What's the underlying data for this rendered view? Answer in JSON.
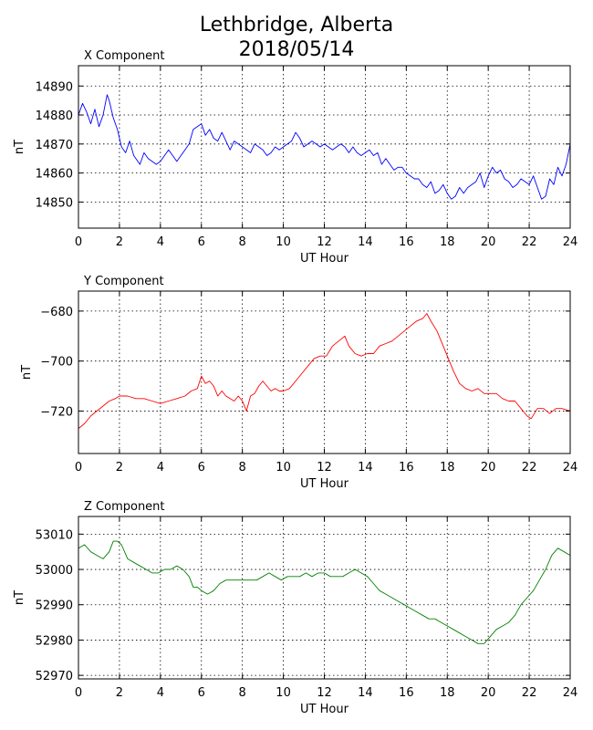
{
  "figure": {
    "title_line1": "Lethbridge, Alberta",
    "title_line2": "2018/05/14"
  },
  "chart_data": [
    {
      "type": "line",
      "title": "X Component",
      "xlabel": "UT Hour",
      "ylabel": "nT",
      "xlim": [
        0,
        24
      ],
      "ylim": [
        14841,
        14897
      ],
      "xticks": [
        0,
        2,
        4,
        6,
        8,
        10,
        12,
        14,
        16,
        18,
        20,
        22,
        24
      ],
      "yticks": [
        14850,
        14860,
        14870,
        14880,
        14890
      ],
      "grid": true,
      "color": "#0000ff",
      "x": [
        0,
        0.2,
        0.4,
        0.6,
        0.8,
        1.0,
        1.2,
        1.4,
        1.5,
        1.7,
        1.9,
        2.1,
        2.3,
        2.5,
        2.7,
        3.0,
        3.2,
        3.4,
        3.6,
        3.8,
        4.0,
        4.2,
        4.4,
        4.6,
        4.8,
        5.0,
        5.2,
        5.4,
        5.6,
        5.8,
        6.0,
        6.2,
        6.4,
        6.6,
        6.8,
        7.0,
        7.2,
        7.4,
        7.6,
        7.8,
        8.0,
        8.2,
        8.4,
        8.6,
        8.8,
        9.0,
        9.2,
        9.4,
        9.6,
        9.8,
        10.0,
        10.2,
        10.4,
        10.6,
        10.8,
        11.0,
        11.2,
        11.4,
        11.6,
        11.8,
        12.0,
        12.2,
        12.4,
        12.6,
        12.8,
        13.0,
        13.2,
        13.4,
        13.6,
        13.8,
        14.0,
        14.2,
        14.4,
        14.6,
        14.8,
        15.0,
        15.2,
        15.4,
        15.6,
        15.8,
        16.0,
        16.2,
        16.4,
        16.6,
        16.8,
        17.0,
        17.2,
        17.4,
        17.6,
        17.8,
        18.0,
        18.2,
        18.4,
        18.6,
        18.8,
        19.0,
        19.2,
        19.4,
        19.6,
        19.8,
        20.0,
        20.2,
        20.4,
        20.6,
        20.8,
        21.0,
        21.2,
        21.4,
        21.6,
        21.8,
        22.0,
        22.2,
        22.4,
        22.6,
        22.8,
        23.0,
        23.2,
        23.4,
        23.6,
        23.8,
        24.0
      ],
      "values": [
        14880,
        14884,
        14881,
        14877,
        14882,
        14876,
        14880,
        14887,
        14885,
        14879,
        14875,
        14869,
        14867,
        14871,
        14866,
        14863,
        14867,
        14865,
        14864,
        14863,
        14864,
        14866,
        14868,
        14866,
        14864,
        14866,
        14868,
        14870,
        14875,
        14876,
        14877,
        14873,
        14875,
        14872,
        14871,
        14874,
        14871,
        14868,
        14871,
        14870,
        14869,
        14868,
        14867,
        14870,
        14869,
        14868,
        14866,
        14867,
        14869,
        14868,
        14869,
        14870,
        14871,
        14874,
        14872,
        14869,
        14870,
        14871,
        14870,
        14869,
        14870,
        14869,
        14868,
        14869,
        14870,
        14869,
        14867,
        14869,
        14867,
        14866,
        14867,
        14868,
        14866,
        14867,
        14863,
        14865,
        14863,
        14861,
        14862,
        14862,
        14860,
        14859,
        14858,
        14858,
        14856,
        14855,
        14857,
        14853,
        14854,
        14856,
        14853,
        14851,
        14852,
        14855,
        14853,
        14855,
        14856,
        14857,
        14860,
        14855,
        14859,
        14862,
        14860,
        14861,
        14858,
        14857,
        14855,
        14856,
        14858,
        14857,
        14856,
        14859,
        14855,
        14851,
        14852,
        14858,
        14856,
        14862,
        14859,
        14863,
        14870
      ]
    },
    {
      "type": "line",
      "title": "Y Component",
      "xlabel": "UT Hour",
      "ylabel": "nT",
      "xlim": [
        0,
        24
      ],
      "ylim": [
        -737,
        -672
      ],
      "xticks": [
        0,
        2,
        4,
        6,
        8,
        10,
        12,
        14,
        16,
        18,
        20,
        22,
        24
      ],
      "yticks": [
        -680,
        -700,
        -720
      ],
      "grid": true,
      "color": "#ff0000",
      "x": [
        0,
        0.3,
        0.6,
        0.9,
        1.2,
        1.5,
        1.8,
        2.0,
        2.4,
        2.8,
        3.2,
        3.6,
        4.0,
        4.4,
        4.8,
        5.2,
        5.5,
        5.8,
        6.0,
        6.2,
        6.4,
        6.6,
        6.8,
        7.0,
        7.2,
        7.4,
        7.6,
        7.8,
        8.0,
        8.2,
        8.4,
        8.6,
        8.8,
        9.0,
        9.2,
        9.4,
        9.6,
        9.8,
        10.0,
        10.3,
        10.6,
        10.9,
        11.2,
        11.5,
        11.8,
        12.1,
        12.4,
        12.7,
        13.0,
        13.2,
        13.5,
        13.8,
        14.1,
        14.4,
        14.7,
        15.0,
        15.3,
        15.6,
        15.9,
        16.2,
        16.5,
        16.8,
        17.0,
        17.2,
        17.5,
        17.8,
        18.0,
        18.3,
        18.6,
        18.9,
        19.2,
        19.5,
        19.8,
        20.1,
        20.4,
        20.7,
        21.0,
        21.3,
        21.6,
        21.9,
        22.1,
        22.4,
        22.7,
        23.0,
        23.3,
        23.6,
        24.0
      ],
      "values": [
        -727,
        -725,
        -722,
        -720,
        -718,
        -716,
        -715,
        -714,
        -714,
        -715,
        -715,
        -716,
        -717,
        -716,
        -715,
        -714,
        -712,
        -711,
        -706,
        -709,
        -708,
        -710,
        -714,
        -712,
        -714,
        -715,
        -716,
        -714,
        -716,
        -720,
        -714,
        -713,
        -710,
        -708,
        -710,
        -712,
        -711,
        -712,
        -712,
        -711,
        -708,
        -705,
        -702,
        -699,
        -698,
        -698,
        -694,
        -692,
        -690,
        -694,
        -697,
        -698,
        -697,
        -697,
        -694,
        -693,
        -692,
        -690,
        -688,
        -686,
        -684,
        -683,
        -681,
        -684,
        -688,
        -694,
        -698,
        -704,
        -709,
        -711,
        -712,
        -711,
        -713,
        -713,
        -713,
        -715,
        -716,
        -716,
        -719,
        -722,
        -723,
        -719,
        -719,
        -721,
        -719,
        -719,
        -720
      ]
    },
    {
      "type": "line",
      "title": "Z Component",
      "xlabel": "UT Hour",
      "ylabel": "nT",
      "xlim": [
        0,
        24
      ],
      "ylim": [
        52969,
        53015
      ],
      "xticks": [
        0,
        2,
        4,
        6,
        8,
        10,
        12,
        14,
        16,
        18,
        20,
        22,
        24
      ],
      "yticks": [
        53010,
        53000,
        52990,
        52980,
        52970
      ],
      "grid": true,
      "color": "#008000",
      "x": [
        0,
        0.3,
        0.6,
        0.9,
        1.2,
        1.5,
        1.7,
        1.9,
        2.1,
        2.4,
        2.7,
        3.0,
        3.3,
        3.6,
        3.9,
        4.2,
        4.5,
        4.8,
        5.1,
        5.4,
        5.6,
        5.8,
        6.0,
        6.3,
        6.6,
        6.9,
        7.2,
        7.5,
        7.8,
        8.1,
        8.4,
        8.7,
        9.0,
        9.3,
        9.6,
        9.9,
        10.2,
        10.5,
        10.8,
        11.1,
        11.4,
        11.7,
        12.0,
        12.3,
        12.6,
        12.9,
        13.2,
        13.5,
        13.8,
        14.1,
        14.4,
        14.7,
        15.0,
        15.3,
        15.6,
        15.9,
        16.2,
        16.5,
        16.8,
        17.1,
        17.4,
        17.7,
        18.0,
        18.3,
        18.6,
        18.9,
        19.2,
        19.5,
        19.8,
        20.1,
        20.4,
        20.7,
        21.0,
        21.3,
        21.6,
        21.9,
        22.2,
        22.5,
        22.8,
        23.1,
        23.4,
        23.7,
        24.0
      ],
      "values": [
        53006,
        53007,
        53005,
        53004,
        53003,
        53005,
        53008,
        53008,
        53007,
        53003,
        53002,
        53001,
        53000,
        52999,
        52999,
        53000,
        53000,
        53001,
        53000,
        52998,
        52995,
        52995,
        52994,
        52993,
        52994,
        52996,
        52997,
        52997,
        52997,
        52997,
        52997,
        52997,
        52998,
        52999,
        52998,
        52997,
        52998,
        52998,
        52998,
        52999,
        52998,
        52999,
        52999,
        52998,
        52998,
        52998,
        52999,
        53000,
        52999,
        52998,
        52996,
        52994,
        52993,
        52992,
        52991,
        52990,
        52989,
        52988,
        52987,
        52986,
        52986,
        52985,
        52984,
        52983,
        52982,
        52981,
        52980,
        52979,
        52979,
        52981,
        52983,
        52984,
        52985,
        52987,
        52990,
        52992,
        52994,
        52997,
        53000,
        53004,
        53006,
        53005,
        53004
      ]
    }
  ]
}
